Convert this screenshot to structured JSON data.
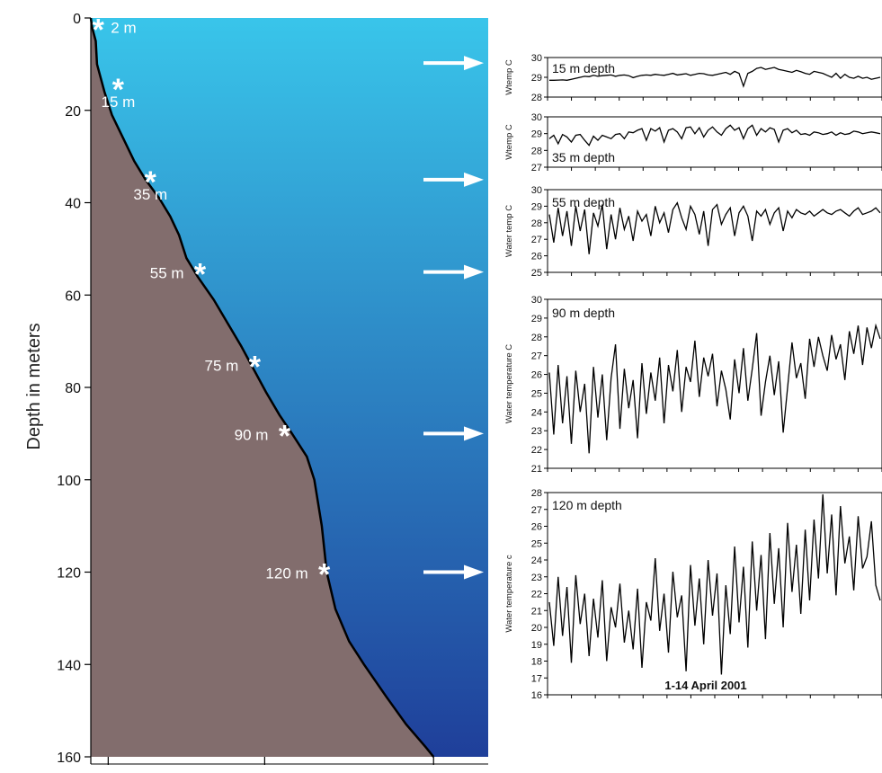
{
  "colors": {
    "water_top": "#39c5ea",
    "water_bottom": "#1f3f9a",
    "seafloor": "#826d6d",
    "profile_line": "#000000",
    "marker": "#ffffff",
    "arrow": "#ffffff",
    "series_line": "#000000"
  },
  "chart_data": [
    {
      "type": "line",
      "ylabel": "Depth in meters",
      "ylim": [
        0,
        160
      ],
      "y_inverted": true,
      "yticks": [
        "0",
        "20",
        "40",
        "60",
        "80",
        "100",
        "120",
        "140",
        "160"
      ],
      "depth_profile": [
        [
          0.0,
          0
        ],
        [
          0.05,
          2
        ],
        [
          0.2,
          5
        ],
        [
          0.25,
          10
        ],
        [
          0.55,
          16
        ],
        [
          0.85,
          21
        ],
        [
          1.3,
          26
        ],
        [
          1.75,
          31
        ],
        [
          2.2,
          35
        ],
        [
          2.75,
          39
        ],
        [
          3.2,
          43
        ],
        [
          3.55,
          47
        ],
        [
          3.85,
          52
        ],
        [
          4.3,
          56
        ],
        [
          4.95,
          61
        ],
        [
          5.5,
          66
        ],
        [
          6.05,
          71
        ],
        [
          6.55,
          76
        ],
        [
          7.05,
          81
        ],
        [
          7.6,
          86
        ],
        [
          8.1,
          90
        ],
        [
          8.7,
          95
        ],
        [
          9.0,
          100
        ],
        [
          9.3,
          110
        ],
        [
          9.5,
          120
        ],
        [
          9.85,
          128
        ],
        [
          10.4,
          135
        ],
        [
          11.0,
          140
        ],
        [
          11.9,
          147
        ],
        [
          12.7,
          153
        ],
        [
          13.5,
          158
        ],
        [
          13.8,
          160
        ]
      ],
      "markers": [
        {
          "label": "2 m",
          "depth": 2
        },
        {
          "label": "15 m",
          "depth": 15
        },
        {
          "label": "35 m",
          "depth": 35
        },
        {
          "label": "55 m",
          "depth": 55
        },
        {
          "label": "75 m",
          "depth": 75
        },
        {
          "label": "90 m",
          "depth": 90
        },
        {
          "label": "120 m",
          "depth": 120
        }
      ]
    },
    {
      "type": "line",
      "annotation": "15 m depth",
      "ylabel": "Wtemp C",
      "ylim": [
        28,
        30
      ],
      "yticks": [
        "28",
        "29",
        "30"
      ],
      "values": [
        28.85,
        28.85,
        28.86,
        28.87,
        28.85,
        28.9,
        28.95,
        29,
        29.05,
        29.03,
        29.1,
        29.05,
        29.08,
        29.1,
        29.12,
        29.05,
        29.1,
        29.12,
        29.08,
        28.98,
        29.05,
        29.1,
        29.12,
        29.1,
        29.15,
        29.12,
        29.1,
        29.15,
        29.2,
        29.12,
        29.15,
        29.18,
        29.1,
        29.15,
        29.2,
        29.18,
        29.12,
        29.1,
        29.15,
        29.2,
        29.25,
        29.15,
        29.3,
        29.2,
        28.55,
        29.2,
        29.3,
        29.45,
        29.5,
        29.4,
        29.45,
        29.5,
        29.4,
        29.35,
        29.3,
        29.25,
        29.35,
        29.28,
        29.2,
        29.15,
        29.3,
        29.25,
        29.2,
        29.1,
        29.0,
        29.2,
        28.95,
        29.15,
        29.0,
        28.95,
        29.05,
        28.95,
        29.0,
        28.9,
        28.95,
        29.0
      ]
    },
    {
      "type": "line",
      "annotation": "35 m depth",
      "ylabel": "Wtemp C",
      "ylim": [
        27,
        30
      ],
      "yticks": [
        "27",
        "28",
        "29",
        "30"
      ],
      "values": [
        28.7,
        28.9,
        28.4,
        28.95,
        28.8,
        28.5,
        28.9,
        28.95,
        28.6,
        28.3,
        28.85,
        28.6,
        28.9,
        28.8,
        28.7,
        28.95,
        29.0,
        28.7,
        29.1,
        29.05,
        29.2,
        29.3,
        28.6,
        29.3,
        29.15,
        29.35,
        28.5,
        29.2,
        29.3,
        29.1,
        28.7,
        29.35,
        29.4,
        29.0,
        29.35,
        28.8,
        29.2,
        29.4,
        29.1,
        28.9,
        29.3,
        29.5,
        29.2,
        29.35,
        28.7,
        29.3,
        29.5,
        28.9,
        29.3,
        29.1,
        29.35,
        29.25,
        28.5,
        29.2,
        29.3,
        29.05,
        29.2,
        28.95,
        29.0,
        28.9,
        29.1,
        29.05,
        28.95,
        29.0,
        29.1,
        28.9,
        29.05,
        28.95,
        29.0,
        29.15,
        29.1,
        29.0,
        29.05,
        29.1,
        29.05,
        29.0
      ]
    },
    {
      "type": "line",
      "annotation": "55 m depth",
      "ylabel": "Water temp C",
      "ylim": [
        25,
        30
      ],
      "yticks": [
        "25",
        "26",
        "27",
        "28",
        "29",
        "30"
      ],
      "values": [
        28.5,
        26.8,
        28.9,
        27.2,
        28.7,
        26.6,
        29.0,
        27.5,
        28.8,
        26.1,
        28.6,
        27.8,
        29.1,
        26.4,
        28.5,
        27.0,
        28.9,
        27.6,
        28.4,
        26.9,
        28.7,
        28.1,
        28.5,
        27.2,
        29.0,
        28.0,
        28.6,
        27.4,
        28.8,
        29.2,
        28.3,
        27.6,
        29.0,
        28.5,
        27.3,
        28.7,
        26.6,
        28.8,
        29.1,
        27.9,
        28.5,
        28.9,
        27.2,
        28.6,
        29.0,
        28.4,
        26.9,
        28.7,
        28.4,
        28.8,
        27.9,
        28.6,
        28.9,
        27.5,
        28.7,
        28.3,
        28.8,
        28.6,
        28.5,
        28.7,
        28.4,
        28.6,
        28.8,
        28.6,
        28.5,
        28.7,
        28.8,
        28.6,
        28.4,
        28.7,
        28.9,
        28.5,
        28.6,
        28.7,
        28.9,
        28.6
      ]
    },
    {
      "type": "line",
      "annotation": "90 m depth",
      "ylabel": "Water temperature C",
      "ylim": [
        21,
        30
      ],
      "yticks": [
        "21",
        "22",
        "23",
        "24",
        "25",
        "26",
        "27",
        "28",
        "29",
        "30"
      ],
      "values": [
        26.1,
        22.8,
        26.5,
        23.4,
        25.9,
        22.3,
        26.2,
        24.0,
        25.5,
        21.8,
        26.4,
        23.7,
        26.0,
        22.5,
        25.8,
        27.6,
        23.1,
        26.3,
        24.2,
        25.7,
        22.6,
        26.6,
        23.9,
        26.1,
        24.6,
        26.9,
        23.4,
        26.5,
        25.1,
        27.3,
        24.0,
        26.4,
        25.6,
        27.8,
        24.8,
        26.9,
        25.9,
        27.1,
        24.3,
        26.2,
        25.2,
        23.6,
        26.8,
        25.0,
        27.4,
        24.6,
        26.3,
        28.2,
        23.8,
        25.6,
        27.0,
        24.9,
        26.7,
        22.9,
        25.3,
        27.7,
        25.8,
        26.6,
        24.7,
        27.9,
        26.4,
        28.0,
        27.0,
        26.2,
        28.1,
        26.8,
        27.6,
        25.7,
        28.3,
        27.1,
        28.6,
        26.5,
        28.5,
        27.4,
        28.6,
        27.9
      ]
    },
    {
      "type": "line",
      "annotation": "120 m depth",
      "ylabel": "Water temperature c",
      "xlabel": "1-14 April 2001",
      "ylim": [
        16,
        28
      ],
      "yticks": [
        "16",
        "17",
        "18",
        "19",
        "20",
        "21",
        "22",
        "23",
        "24",
        "25",
        "26",
        "27",
        "28"
      ],
      "values": [
        21.5,
        18.9,
        23.0,
        19.5,
        22.4,
        17.9,
        23.1,
        20.2,
        22.0,
        18.3,
        21.7,
        19.4,
        22.8,
        18.0,
        21.2,
        20.0,
        22.6,
        19.1,
        21.0,
        18.7,
        22.3,
        17.6,
        21.5,
        20.4,
        24.1,
        19.8,
        22.0,
        18.5,
        23.3,
        20.6,
        21.9,
        17.4,
        23.7,
        20.1,
        22.9,
        19.0,
        24.0,
        20.7,
        23.2,
        17.2,
        22.5,
        19.6,
        24.8,
        20.3,
        23.6,
        18.8,
        25.1,
        21.0,
        24.3,
        19.3,
        25.6,
        21.4,
        24.7,
        20.0,
        26.2,
        22.1,
        24.9,
        20.8,
        25.8,
        21.6,
        26.4,
        22.9,
        27.9,
        23.2,
        26.7,
        21.9,
        27.2,
        23.8,
        25.4,
        22.2,
        26.6,
        23.5,
        24.2,
        26.3,
        22.5,
        21.6
      ]
    }
  ]
}
